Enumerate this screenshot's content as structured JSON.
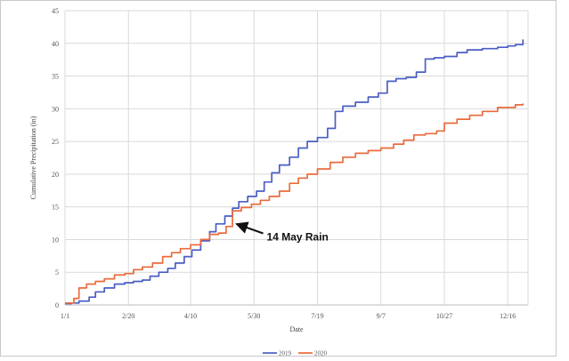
{
  "chart_data": {
    "type": "line",
    "title": "",
    "xlabel": "Date",
    "ylabel": "Cumulative Precipitation (in)",
    "x_ticks": [
      "1/1",
      "2/20",
      "4/10",
      "5/30",
      "7/19",
      "9/7",
      "10/27",
      "12/16"
    ],
    "x_tick_days": [
      1,
      51,
      100,
      150,
      200,
      250,
      300,
      350
    ],
    "xlim": [
      1,
      366
    ],
    "ylim": [
      0,
      45
    ],
    "y_ticks": [
      0,
      5,
      10,
      15,
      20,
      25,
      30,
      35,
      40,
      45
    ],
    "grid": true,
    "legend_position": "bottom",
    "series": [
      {
        "name": "2019",
        "color": "#4a5ec4",
        "points": [
          [
            1,
            0.2
          ],
          [
            6,
            0.3
          ],
          [
            12,
            0.6
          ],
          [
            20,
            1.2
          ],
          [
            25,
            2.0
          ],
          [
            32,
            2.6
          ],
          [
            40,
            3.2
          ],
          [
            48,
            3.4
          ],
          [
            55,
            3.6
          ],
          [
            62,
            3.8
          ],
          [
            68,
            4.4
          ],
          [
            75,
            5.0
          ],
          [
            82,
            5.6
          ],
          [
            88,
            6.4
          ],
          [
            95,
            7.4
          ],
          [
            101,
            8.4
          ],
          [
            108,
            9.8
          ],
          [
            115,
            11.2
          ],
          [
            120,
            12.4
          ],
          [
            127,
            13.6
          ],
          [
            133,
            14.8
          ],
          [
            138,
            15.8
          ],
          [
            145,
            16.6
          ],
          [
            152,
            17.4
          ],
          [
            158,
            18.8
          ],
          [
            164,
            20.2
          ],
          [
            170,
            21.4
          ],
          [
            178,
            22.6
          ],
          [
            185,
            24.0
          ],
          [
            192,
            25.0
          ],
          [
            200,
            25.6
          ],
          [
            208,
            27.0
          ],
          [
            214,
            29.6
          ],
          [
            220,
            30.4
          ],
          [
            230,
            31.0
          ],
          [
            240,
            31.8
          ],
          [
            248,
            32.4
          ],
          [
            255,
            34.2
          ],
          [
            262,
            34.6
          ],
          [
            270,
            34.8
          ],
          [
            278,
            35.6
          ],
          [
            285,
            37.6
          ],
          [
            292,
            37.8
          ],
          [
            300,
            38.0
          ],
          [
            310,
            38.6
          ],
          [
            318,
            39.0
          ],
          [
            330,
            39.2
          ],
          [
            342,
            39.4
          ],
          [
            350,
            39.6
          ],
          [
            356,
            39.8
          ],
          [
            362,
            40.6
          ]
        ]
      },
      {
        "name": "2020",
        "color": "#ea6b3b",
        "points": [
          [
            1,
            0.3
          ],
          [
            8,
            1.0
          ],
          [
            12,
            2.6
          ],
          [
            18,
            3.2
          ],
          [
            25,
            3.6
          ],
          [
            32,
            4.0
          ],
          [
            40,
            4.6
          ],
          [
            48,
            4.8
          ],
          [
            55,
            5.4
          ],
          [
            62,
            5.8
          ],
          [
            70,
            6.4
          ],
          [
            78,
            7.4
          ],
          [
            85,
            8.0
          ],
          [
            92,
            8.6
          ],
          [
            100,
            9.2
          ],
          [
            108,
            10.0
          ],
          [
            115,
            10.8
          ],
          [
            122,
            11.0
          ],
          [
            128,
            12.0
          ],
          [
            133,
            14.4
          ],
          [
            140,
            14.9
          ],
          [
            148,
            15.4
          ],
          [
            155,
            16.0
          ],
          [
            162,
            16.6
          ],
          [
            170,
            17.4
          ],
          [
            178,
            18.6
          ],
          [
            185,
            19.4
          ],
          [
            192,
            20.0
          ],
          [
            200,
            20.8
          ],
          [
            210,
            21.8
          ],
          [
            220,
            22.6
          ],
          [
            230,
            23.2
          ],
          [
            240,
            23.6
          ],
          [
            250,
            24.0
          ],
          [
            260,
            24.6
          ],
          [
            268,
            25.2
          ],
          [
            276,
            26.0
          ],
          [
            285,
            26.2
          ],
          [
            294,
            26.6
          ],
          [
            300,
            27.8
          ],
          [
            310,
            28.4
          ],
          [
            320,
            29.0
          ],
          [
            330,
            29.6
          ],
          [
            342,
            30.2
          ],
          [
            356,
            30.6
          ],
          [
            362,
            30.8
          ]
        ]
      }
    ],
    "annotations": [
      {
        "text": "14 May Rain",
        "point_day": 134,
        "point_value": 12.4,
        "text_day": 160,
        "text_value": 10.4
      }
    ]
  }
}
